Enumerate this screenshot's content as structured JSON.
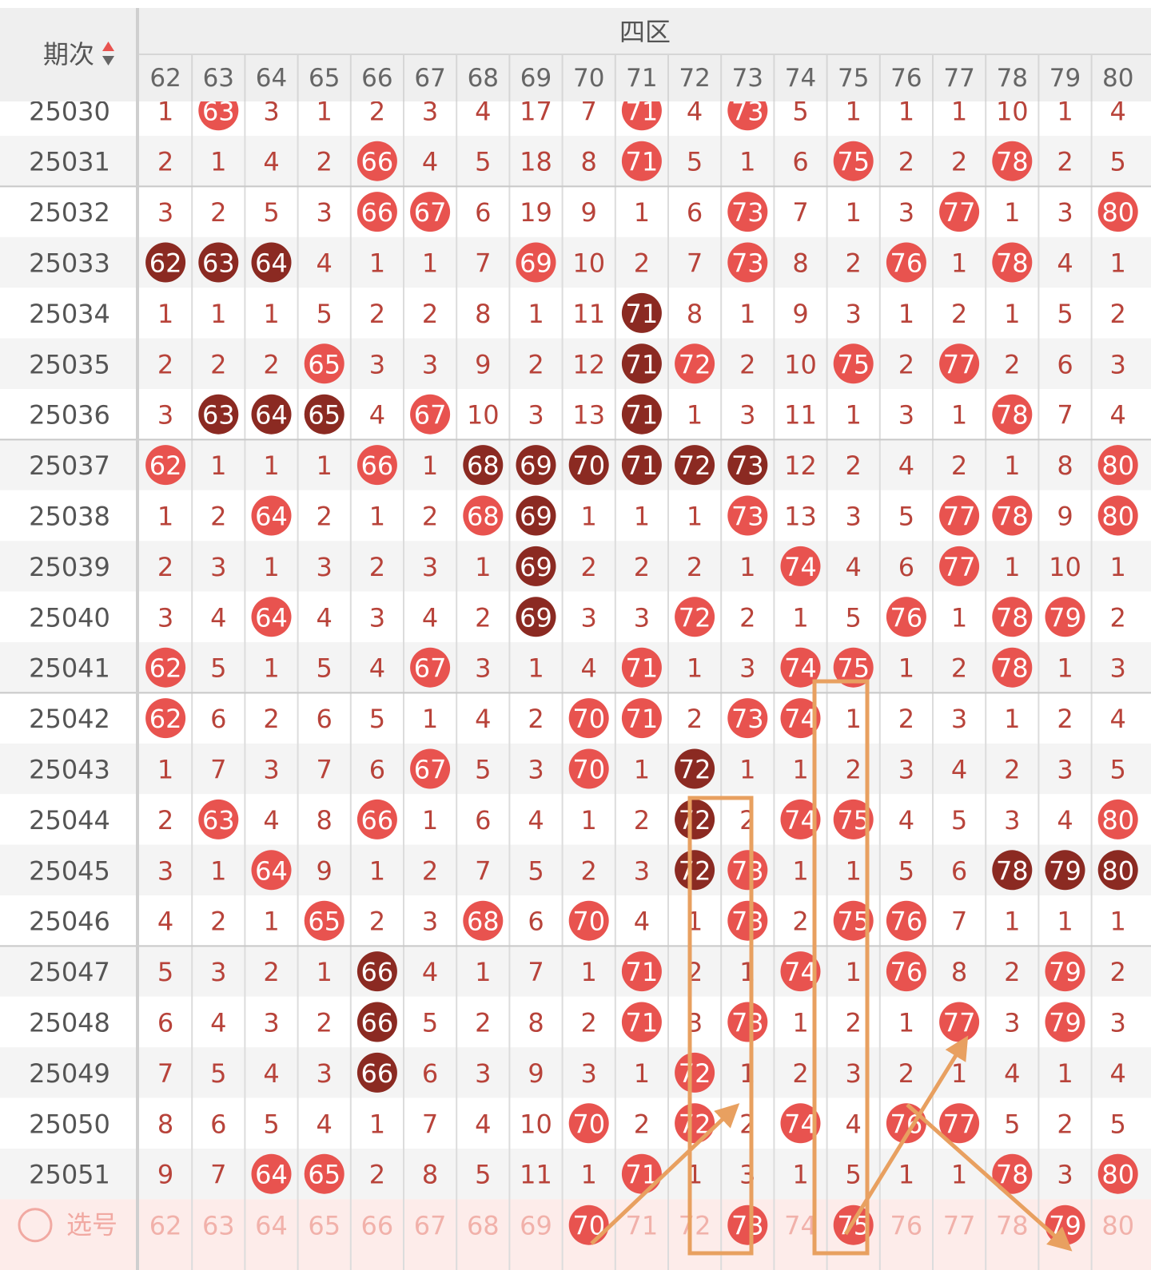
{
  "header": {
    "period_label": "期次",
    "zone_label": "四区",
    "columns": [
      "62",
      "63",
      "64",
      "65",
      "66",
      "67",
      "68",
      "69",
      "70",
      "71",
      "72",
      "73",
      "74",
      "75",
      "76",
      "77",
      "78",
      "79",
      "80"
    ]
  },
  "rows": [
    {
      "period": "25030",
      "cells": [
        1,
        {
          "text": "63",
          "color": "#e8534f"
        },
        3,
        1,
        2,
        3,
        4,
        17,
        7,
        {
          "text": "71",
          "color": "#e8534f"
        },
        4,
        {
          "text": "73",
          "color": "#e8534f"
        },
        5,
        1,
        1,
        1,
        10,
        1,
        4
      ]
    },
    {
      "period": "25031",
      "cells": [
        2,
        1,
        4,
        2,
        {
          "text": "66",
          "color": "#e8534f"
        },
        4,
        5,
        18,
        8,
        {
          "text": "71",
          "color": "#e8534f"
        },
        5,
        1,
        6,
        {
          "text": "75",
          "color": "#e8534f"
        },
        2,
        2,
        {
          "text": "78",
          "color": "#e8534f"
        },
        2,
        5
      ]
    },
    {
      "period": "25032",
      "cells": [
        3,
        2,
        5,
        3,
        {
          "text": "66",
          "color": "#e8534f"
        },
        {
          "text": "67",
          "color": "#e8534f"
        },
        6,
        19,
        9,
        1,
        6,
        {
          "text": "73",
          "color": "#e8534f"
        },
        7,
        1,
        3,
        {
          "text": "77",
          "color": "#e8534f"
        },
        1,
        3,
        {
          "text": "80",
          "color": "#e8534f"
        }
      ]
    },
    {
      "period": "25033",
      "cells": [
        {
          "text": "62",
          "color": "#8b2a22"
        },
        {
          "text": "63",
          "color": "#8b2a22"
        },
        {
          "text": "64",
          "color": "#8b2a22"
        },
        4,
        1,
        1,
        7,
        {
          "text": "69",
          "color": "#e8534f"
        },
        10,
        2,
        7,
        {
          "text": "73",
          "color": "#e8534f"
        },
        8,
        2,
        {
          "text": "76",
          "color": "#e8534f"
        },
        1,
        {
          "text": "78",
          "color": "#e8534f"
        },
        4,
        1
      ]
    },
    {
      "period": "25034",
      "cells": [
        1,
        1,
        1,
        5,
        2,
        2,
        8,
        1,
        11,
        {
          "text": "71",
          "color": "#8b2a22"
        },
        8,
        1,
        9,
        3,
        1,
        2,
        1,
        5,
        2
      ]
    },
    {
      "period": "25035",
      "cells": [
        2,
        2,
        2,
        {
          "text": "65",
          "color": "#e8534f"
        },
        3,
        3,
        9,
        2,
        12,
        {
          "text": "71",
          "color": "#8b2a22"
        },
        {
          "text": "72",
          "color": "#e8534f"
        },
        2,
        10,
        {
          "text": "75",
          "color": "#e8534f"
        },
        2,
        {
          "text": "77",
          "color": "#e8534f"
        },
        2,
        6,
        3
      ]
    },
    {
      "period": "25036",
      "cells": [
        3,
        {
          "text": "63",
          "color": "#8b2a22"
        },
        {
          "text": "64",
          "color": "#8b2a22"
        },
        {
          "text": "65",
          "color": "#8b2a22"
        },
        4,
        {
          "text": "67",
          "color": "#e8534f"
        },
        10,
        3,
        13,
        {
          "text": "71",
          "color": "#8b2a22"
        },
        1,
        3,
        11,
        1,
        3,
        1,
        {
          "text": "78",
          "color": "#e8534f"
        },
        7,
        4
      ]
    },
    {
      "period": "25037",
      "cells": [
        {
          "text": "62",
          "color": "#e8534f"
        },
        1,
        1,
        1,
        {
          "text": "66",
          "color": "#e8534f"
        },
        1,
        {
          "text": "68",
          "color": "#8b2a22"
        },
        {
          "text": "69",
          "color": "#8b2a22"
        },
        {
          "text": "70",
          "color": "#8b2a22"
        },
        {
          "text": "71",
          "color": "#8b2a22"
        },
        {
          "text": "72",
          "color": "#8b2a22"
        },
        {
          "text": "73",
          "color": "#8b2a22"
        },
        12,
        2,
        4,
        2,
        1,
        8,
        {
          "text": "80",
          "color": "#e8534f"
        }
      ]
    },
    {
      "period": "25038",
      "cells": [
        1,
        2,
        {
          "text": "64",
          "color": "#e8534f"
        },
        2,
        1,
        2,
        {
          "text": "68",
          "color": "#e8534f"
        },
        {
          "text": "69",
          "color": "#8b2a22"
        },
        1,
        1,
        1,
        {
          "text": "73",
          "color": "#e8534f"
        },
        13,
        3,
        5,
        {
          "text": "77",
          "color": "#e8534f"
        },
        {
          "text": "78",
          "color": "#e8534f"
        },
        9,
        {
          "text": "80",
          "color": "#e8534f"
        }
      ]
    },
    {
      "period": "25039",
      "cells": [
        2,
        3,
        1,
        3,
        2,
        3,
        1,
        {
          "text": "69",
          "color": "#8b2a22"
        },
        2,
        2,
        2,
        1,
        {
          "text": "74",
          "color": "#e8534f"
        },
        4,
        6,
        {
          "text": "77",
          "color": "#e8534f"
        },
        1,
        10,
        1
      ]
    },
    {
      "period": "25040",
      "cells": [
        3,
        4,
        {
          "text": "64",
          "color": "#e8534f"
        },
        4,
        3,
        4,
        2,
        {
          "text": "69",
          "color": "#8b2a22"
        },
        3,
        3,
        {
          "text": "72",
          "color": "#e8534f"
        },
        2,
        1,
        5,
        {
          "text": "76",
          "color": "#e8534f"
        },
        1,
        {
          "text": "78",
          "color": "#e8534f"
        },
        {
          "text": "79",
          "color": "#e8534f"
        },
        2
      ]
    },
    {
      "period": "25041",
      "cells": [
        {
          "text": "62",
          "color": "#e8534f"
        },
        5,
        1,
        5,
        4,
        {
          "text": "67",
          "color": "#e8534f"
        },
        3,
        1,
        4,
        {
          "text": "71",
          "color": "#e8534f"
        },
        1,
        3,
        {
          "text": "74",
          "color": "#e8534f"
        },
        {
          "text": "75",
          "color": "#e8534f"
        },
        1,
        2,
        {
          "text": "78",
          "color": "#e8534f"
        },
        1,
        3
      ]
    },
    {
      "period": "25042",
      "cells": [
        {
          "text": "62",
          "color": "#e8534f"
        },
        6,
        2,
        6,
        5,
        1,
        4,
        2,
        {
          "text": "70",
          "color": "#e8534f"
        },
        {
          "text": "71",
          "color": "#e8534f"
        },
        2,
        {
          "text": "73",
          "color": "#e8534f"
        },
        {
          "text": "74",
          "color": "#e8534f"
        },
        1,
        2,
        3,
        1,
        2,
        4
      ]
    },
    {
      "period": "25043",
      "cells": [
        1,
        7,
        3,
        7,
        6,
        {
          "text": "67",
          "color": "#e8534f"
        },
        5,
        3,
        {
          "text": "70",
          "color": "#e8534f"
        },
        1,
        {
          "text": "72",
          "color": "#8b2a22"
        },
        1,
        1,
        2,
        3,
        4,
        2,
        3,
        5
      ]
    },
    {
      "period": "25044",
      "cells": [
        2,
        {
          "text": "63",
          "color": "#e8534f"
        },
        4,
        8,
        {
          "text": "66",
          "color": "#e8534f"
        },
        1,
        6,
        4,
        1,
        2,
        {
          "text": "72",
          "color": "#8b2a22"
        },
        2,
        {
          "text": "74",
          "color": "#e8534f"
        },
        {
          "text": "75",
          "color": "#e8534f"
        },
        4,
        5,
        3,
        4,
        {
          "text": "80",
          "color": "#e8534f"
        }
      ]
    },
    {
      "period": "25045",
      "cells": [
        3,
        1,
        {
          "text": "64",
          "color": "#e8534f"
        },
        9,
        1,
        2,
        7,
        5,
        2,
        3,
        {
          "text": "72",
          "color": "#8b2a22"
        },
        {
          "text": "73",
          "color": "#e8534f"
        },
        1,
        1,
        5,
        6,
        {
          "text": "78",
          "color": "#8b2a22"
        },
        {
          "text": "79",
          "color": "#8b2a22"
        },
        {
          "text": "80",
          "color": "#8b2a22"
        }
      ]
    },
    {
      "period": "25046",
      "cells": [
        4,
        2,
        1,
        {
          "text": "65",
          "color": "#e8534f"
        },
        2,
        3,
        {
          "text": "68",
          "color": "#e8534f"
        },
        6,
        {
          "text": "70",
          "color": "#e8534f"
        },
        4,
        1,
        {
          "text": "73",
          "color": "#e8534f"
        },
        2,
        {
          "text": "75",
          "color": "#e8534f"
        },
        {
          "text": "76",
          "color": "#e8534f"
        },
        7,
        1,
        1,
        1
      ]
    },
    {
      "period": "25047",
      "cells": [
        5,
        3,
        2,
        1,
        {
          "text": "66",
          "color": "#8b2a22"
        },
        4,
        1,
        7,
        1,
        {
          "text": "71",
          "color": "#e8534f"
        },
        2,
        1,
        {
          "text": "74",
          "color": "#e8534f"
        },
        1,
        {
          "text": "76",
          "color": "#e8534f"
        },
        8,
        2,
        {
          "text": "79",
          "color": "#e8534f"
        },
        2
      ]
    },
    {
      "period": "25048",
      "cells": [
        6,
        4,
        3,
        2,
        {
          "text": "66",
          "color": "#8b2a22"
        },
        5,
        2,
        8,
        2,
        {
          "text": "71",
          "color": "#e8534f"
        },
        3,
        {
          "text": "73",
          "color": "#e8534f"
        },
        1,
        2,
        1,
        {
          "text": "77",
          "color": "#e8534f"
        },
        3,
        {
          "text": "79",
          "color": "#e8534f"
        },
        3
      ]
    },
    {
      "period": "25049",
      "cells": [
        7,
        5,
        4,
        3,
        {
          "text": "66",
          "color": "#8b2a22"
        },
        6,
        3,
        9,
        3,
        1,
        {
          "text": "72",
          "color": "#e8534f"
        },
        1,
        2,
        3,
        2,
        1,
        4,
        1,
        4
      ]
    },
    {
      "period": "25050",
      "cells": [
        8,
        6,
        5,
        4,
        1,
        7,
        4,
        10,
        {
          "text": "70",
          "color": "#e8534f"
        },
        2,
        {
          "text": "72",
          "color": "#e8534f"
        },
        2,
        {
          "text": "74",
          "color": "#e8534f"
        },
        4,
        {
          "text": "76",
          "color": "#e8534f"
        },
        {
          "text": "77",
          "color": "#e8534f"
        },
        5,
        2,
        5
      ]
    },
    {
      "period": "25051",
      "cells": [
        9,
        7,
        {
          "text": "64",
          "color": "#e8534f"
        },
        {
          "text": "65",
          "color": "#e8534f"
        },
        2,
        8,
        5,
        11,
        1,
        {
          "text": "71",
          "color": "#e8534f"
        },
        1,
        3,
        1,
        5,
        1,
        1,
        {
          "text": "78",
          "color": "#e8534f"
        },
        3,
        {
          "text": "80",
          "color": "#e8534f"
        }
      ]
    }
  ],
  "select": {
    "label": "选号",
    "cells": [
      "62",
      "63",
      "64",
      "65",
      "66",
      "67",
      "68",
      "69",
      {
        "text": "70",
        "color": "#e8534f"
      },
      "71",
      "72",
      {
        "text": "73",
        "color": "#e8534f"
      },
      "74",
      {
        "text": "75",
        "color": "#e8534f"
      },
      "76",
      "77",
      "78",
      {
        "text": "79",
        "color": "#e8534f"
      },
      "80"
    ]
  }
}
